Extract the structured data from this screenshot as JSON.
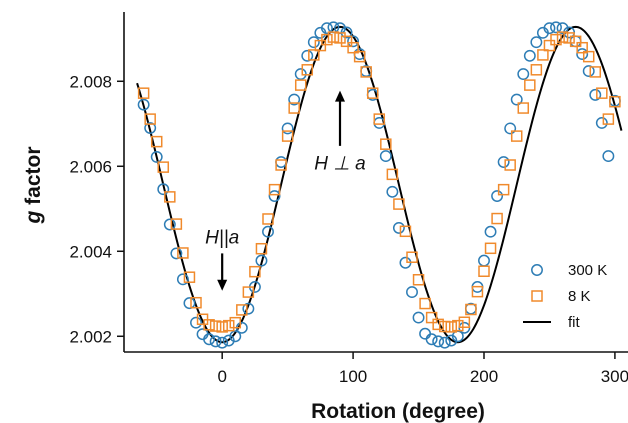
{
  "chart_data": {
    "type": "scatter",
    "title": "",
    "xlabel": "Rotation (degree)",
    "ylabel_italic": "g",
    "ylabel_rest": " factor",
    "xlim": [
      -75,
      310
    ],
    "ylim": [
      2.00163,
      2.00963
    ],
    "xticks": [
      0,
      100,
      200,
      300
    ],
    "yticks": [
      2.002,
      2.004,
      2.006,
      2.008
    ],
    "ytick_labels": [
      "2.002",
      "2.004",
      "2.006",
      "2.008"
    ],
    "xtick_labels": [
      "0",
      "100",
      "200",
      "300"
    ],
    "grid": false,
    "legend_position": "bottom-right",
    "series": [
      {
        "name": "300 K",
        "marker": "circle",
        "color": "#2E7DB5",
        "x": [
          -60,
          -55,
          -50,
          -45,
          -40,
          -35,
          -30,
          -25,
          -20,
          -15,
          -10,
          -5,
          0,
          5,
          10,
          15,
          20,
          25,
          30,
          35,
          40,
          45,
          50,
          55,
          60,
          65,
          70,
          75,
          80,
          85,
          90,
          95,
          100,
          105,
          110,
          115,
          120,
          125,
          130,
          135,
          140,
          145,
          150,
          155,
          160,
          165,
          170,
          175,
          180,
          185,
          190,
          195,
          200,
          205,
          210,
          215,
          220,
          225,
          230,
          235,
          240,
          245,
          250,
          255,
          260,
          265,
          270,
          275,
          280,
          285,
          290,
          295,
          300
        ],
        "y": [
          2.00745,
          2.0069,
          2.00622,
          2.00546,
          2.00463,
          2.00395,
          2.00334,
          2.00278,
          2.00232,
          2.00205,
          2.00193,
          2.00188,
          2.00185,
          2.0019,
          2.002,
          2.0022,
          2.00265,
          2.00316,
          2.00378,
          2.00446,
          2.0053,
          2.0061,
          2.00689,
          2.00757,
          2.00817,
          2.0086,
          2.00892,
          2.00914,
          2.00925,
          2.00927,
          2.00925,
          2.00915,
          2.00894,
          2.00864,
          2.00824,
          2.00768,
          2.00702,
          2.00624,
          2.0054,
          2.00455,
          2.00373,
          2.00304,
          2.00244,
          2.00206,
          2.00193,
          2.00188,
          2.00185,
          2.0019,
          2.002,
          2.0022,
          2.00265,
          2.00316,
          2.00378,
          2.00446,
          2.0053,
          2.0061,
          2.00689,
          2.00757,
          2.00817,
          2.0086,
          2.00892,
          2.00914,
          2.00925,
          2.00927,
          2.00925,
          2.00915,
          2.00894,
          2.00864,
          2.00824,
          2.00768,
          2.00702,
          2.00624,
          2.00754
        ]
      },
      {
        "name": "8 K",
        "marker": "square",
        "color": "#F08A2C",
        "x": [
          -60,
          -55,
          -50,
          -45,
          -40,
          -35,
          -30,
          -25,
          -20,
          -15,
          -10,
          -5,
          0,
          5,
          10,
          15,
          20,
          25,
          30,
          35,
          40,
          45,
          50,
          55,
          60,
          65,
          70,
          75,
          80,
          85,
          90,
          95,
          100,
          105,
          110,
          115,
          120,
          125,
          130,
          135,
          140,
          145,
          150,
          155,
          160,
          165,
          170,
          175,
          180,
          185,
          190,
          195,
          200,
          205,
          210,
          215,
          220,
          225,
          230,
          235,
          240,
          245,
          250,
          255,
          260,
          265,
          270,
          275,
          280,
          285,
          290,
          295,
          300
        ],
        "y": [
          2.00772,
          2.00711,
          2.00658,
          2.00598,
          2.00528,
          2.00464,
          2.00396,
          2.00339,
          2.00279,
          2.0024,
          2.00227,
          2.00224,
          2.00222,
          2.00225,
          2.00232,
          2.00262,
          2.00304,
          2.00352,
          2.00406,
          2.00476,
          2.00545,
          2.00603,
          2.00671,
          2.00737,
          2.00791,
          2.00827,
          2.00862,
          2.00884,
          2.00898,
          2.00904,
          2.00902,
          2.00894,
          2.00879,
          2.00858,
          2.00822,
          2.00772,
          2.00711,
          2.00652,
          2.00581,
          2.00511,
          2.00447,
          2.00386,
          2.00333,
          2.00277,
          2.00244,
          2.00228,
          2.00223,
          2.00222,
          2.00225,
          2.00233,
          2.00263,
          2.00305,
          2.00353,
          2.00407,
          2.00477,
          2.00545,
          2.00603,
          2.00671,
          2.00737,
          2.00791,
          2.00827,
          2.00862,
          2.00884,
          2.00898,
          2.00904,
          2.00902,
          2.00894,
          2.00879,
          2.00858,
          2.00822,
          2.00772,
          2.00711,
          2.00752
        ]
      },
      {
        "name": "fit",
        "type": "line",
        "color": "#000000",
        "model": {
          "offset": 2.00557,
          "amplitude": 0.00371,
          "period_deg": 180,
          "phase_deg": 0
        },
        "x_range": [
          -65,
          305
        ]
      }
    ],
    "annotations": [
      {
        "id": "parallel",
        "text": "H||a",
        "x": 0,
        "y_text": 2.00418,
        "arrow_from": 2.00395,
        "arrow_to": 2.00307,
        "direction": "down"
      },
      {
        "id": "perp",
        "text": "H ⊥ a",
        "x": 90,
        "y_text": 2.00593,
        "arrow_from": 2.00648,
        "arrow_to": 2.00778,
        "direction": "up"
      }
    ]
  }
}
